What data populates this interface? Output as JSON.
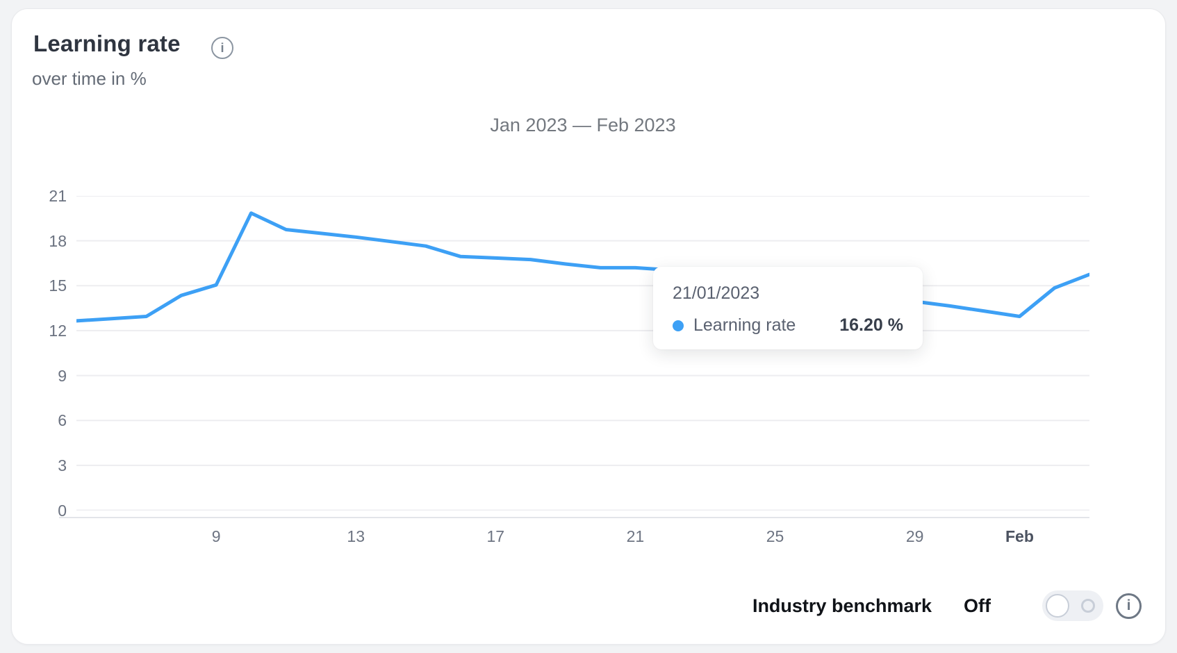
{
  "header": {
    "title": "Learning rate",
    "subtitle": "over time in %",
    "info_icon": "info-icon"
  },
  "chart_data": {
    "type": "line",
    "title": "Jan 2023 — Feb 2023",
    "unit": "%",
    "ylim": [
      0,
      21
    ],
    "y_ticks": [
      0,
      3,
      6,
      9,
      12,
      15,
      18,
      21
    ],
    "grid": "horizontal",
    "x_start": "05/01/2023",
    "x_end": "03/02/2023",
    "x_tick_labels": [
      {
        "label": "9",
        "index": 4,
        "bold": false
      },
      {
        "label": "13",
        "index": 8,
        "bold": false
      },
      {
        "label": "17",
        "index": 12,
        "bold": false
      },
      {
        "label": "21",
        "index": 16,
        "bold": false
      },
      {
        "label": "25",
        "index": 20,
        "bold": false
      },
      {
        "label": "29",
        "index": 24,
        "bold": false
      },
      {
        "label": "Feb",
        "index": 27,
        "bold": true
      }
    ],
    "series": [
      {
        "name": "Learning rate",
        "color": "#3da0f5",
        "values": [
          12.65,
          12.8,
          12.95,
          14.35,
          15.05,
          19.85,
          18.75,
          18.5,
          18.25,
          17.95,
          17.65,
          16.95,
          16.85,
          16.75,
          16.45,
          16.2,
          16.2,
          16.05,
          15.75,
          15.45,
          15.15,
          14.85,
          14.55,
          14.25,
          13.95,
          13.65,
          13.3,
          12.95,
          14.85,
          15.75
        ]
      }
    ]
  },
  "tooltip": {
    "date": "21/01/2023",
    "series": "Learning rate",
    "value": "16.20 %"
  },
  "benchmark": {
    "label": "Industry benchmark",
    "state": "Off",
    "toggle_on": false
  },
  "colors": {
    "line": "#3da0f5",
    "gridline": "#ededf0",
    "axis_line": "#e3e5e9"
  }
}
